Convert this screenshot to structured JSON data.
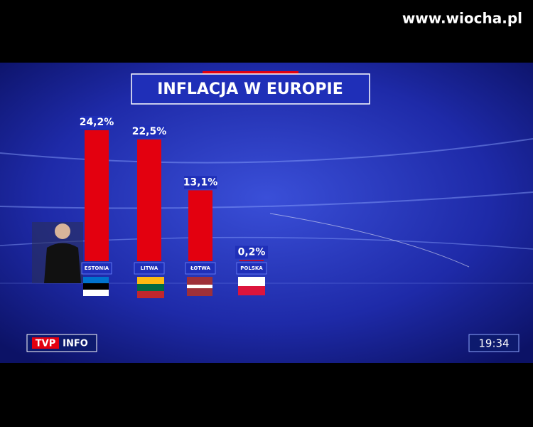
{
  "watermark": "www.wiocha.pl",
  "chart_data": {
    "type": "bar",
    "title": "INFLACJA W EUROPIE",
    "categories": [
      "ESTONIA",
      "LITWA",
      "ŁOTWA",
      "POLSKA"
    ],
    "values": [
      24.2,
      22.5,
      13.1,
      0.2
    ],
    "value_labels": [
      "24,2%",
      "22,5%",
      "13,1%",
      "0,2%"
    ],
    "color": "#e3000f"
  },
  "logo": {
    "left": "TVP",
    "right": "INFO"
  },
  "clock": "19:34"
}
